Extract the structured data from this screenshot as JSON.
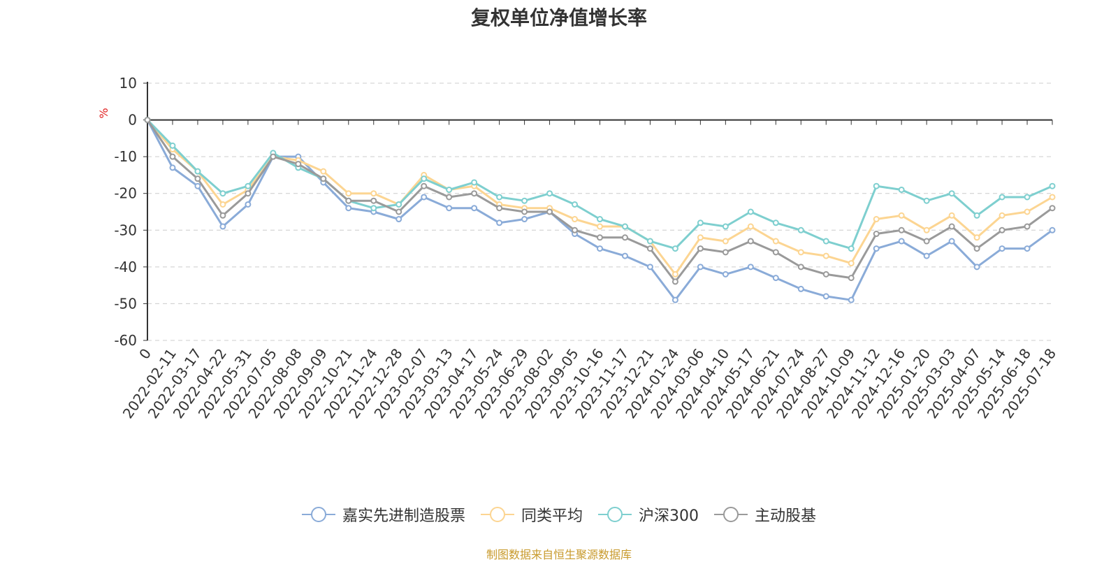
{
  "title": "复权单位净值增长率",
  "source": "制图数据来自恒生聚源数据库",
  "chart_data": {
    "type": "line",
    "ylabel": "%",
    "ylim": [
      -60,
      10
    ],
    "yticks": [
      10,
      0,
      -10,
      -20,
      -30,
      -40,
      -50,
      -60
    ],
    "grid": true,
    "legend_position": "bottom",
    "x_tick_labels": [
      "0",
      "2022-02-11",
      "2022-03-17",
      "2022-04-22",
      "2022-05-31",
      "2022-07-05",
      "2022-08-08",
      "2022-09-09",
      "2022-10-21",
      "2022-11-24",
      "2022-12-28",
      "2023-02-07",
      "2023-03-13",
      "2023-04-17",
      "2023-05-24",
      "2023-06-29",
      "2023-08-02",
      "2023-09-05",
      "2023-10-16",
      "2023-11-17",
      "2023-12-21",
      "2024-01-24",
      "2024-03-06",
      "2024-04-10",
      "2024-05-17",
      "2024-06-21",
      "2024-07-24",
      "2024-08-27",
      "2024-10-09",
      "2024-11-12",
      "2024-12-16",
      "2025-01-20",
      "2025-03-03",
      "2025-04-07",
      "2025-05-14",
      "2025-06-18",
      "2025-07-18"
    ],
    "series": [
      {
        "name": "嘉实先进制造股票",
        "color": "#8aabd8",
        "values": [
          0,
          -13,
          -18,
          -29,
          -23,
          -10,
          -10,
          -17,
          -24,
          -25,
          -27,
          -21,
          -24,
          -24,
          -28,
          -27,
          -25,
          -31,
          -35,
          -37,
          -40,
          -49,
          -40,
          -42,
          -40,
          -43,
          -46,
          -48,
          -49,
          -35,
          -33,
          -37,
          -33,
          -40,
          -35,
          -35,
          -30
        ]
      },
      {
        "name": "同类平均",
        "color": "#fcd592",
        "values": [
          0,
          -8,
          -14,
          -23,
          -19,
          -10,
          -11,
          -14,
          -20,
          -20,
          -23,
          -15,
          -19,
          -18,
          -23,
          -24,
          -24,
          -27,
          -29,
          -29,
          -33,
          -42,
          -32,
          -33,
          -29,
          -33,
          -36,
          -37,
          -39,
          -27,
          -26,
          -30,
          -26,
          -32,
          -26,
          -25,
          -21
        ]
      },
      {
        "name": "沪深300",
        "color": "#7ecfcf",
        "values": [
          0,
          -7,
          -14,
          -20,
          -18,
          -9,
          -13,
          -16,
          -22,
          -24,
          -23,
          -16,
          -19,
          -17,
          -21,
          -22,
          -20,
          -23,
          -27,
          -29,
          -33,
          -35,
          -28,
          -29,
          -25,
          -28,
          -30,
          -33,
          -35,
          -18,
          -19,
          -22,
          -20,
          -26,
          -21,
          -21,
          -18
        ]
      },
      {
        "name": "主动股基",
        "color": "#9a9a9a",
        "values": [
          0,
          -10,
          -16,
          -26,
          -20,
          -10,
          -12,
          -16,
          -22,
          -22,
          -25,
          -18,
          -21,
          -20,
          -24,
          -25,
          -25,
          -30,
          -32,
          -32,
          -35,
          -44,
          -35,
          -36,
          -33,
          -36,
          -40,
          -42,
          -43,
          -31,
          -30,
          -33,
          -29,
          -35,
          -30,
          -29,
          -24
        ]
      }
    ]
  }
}
